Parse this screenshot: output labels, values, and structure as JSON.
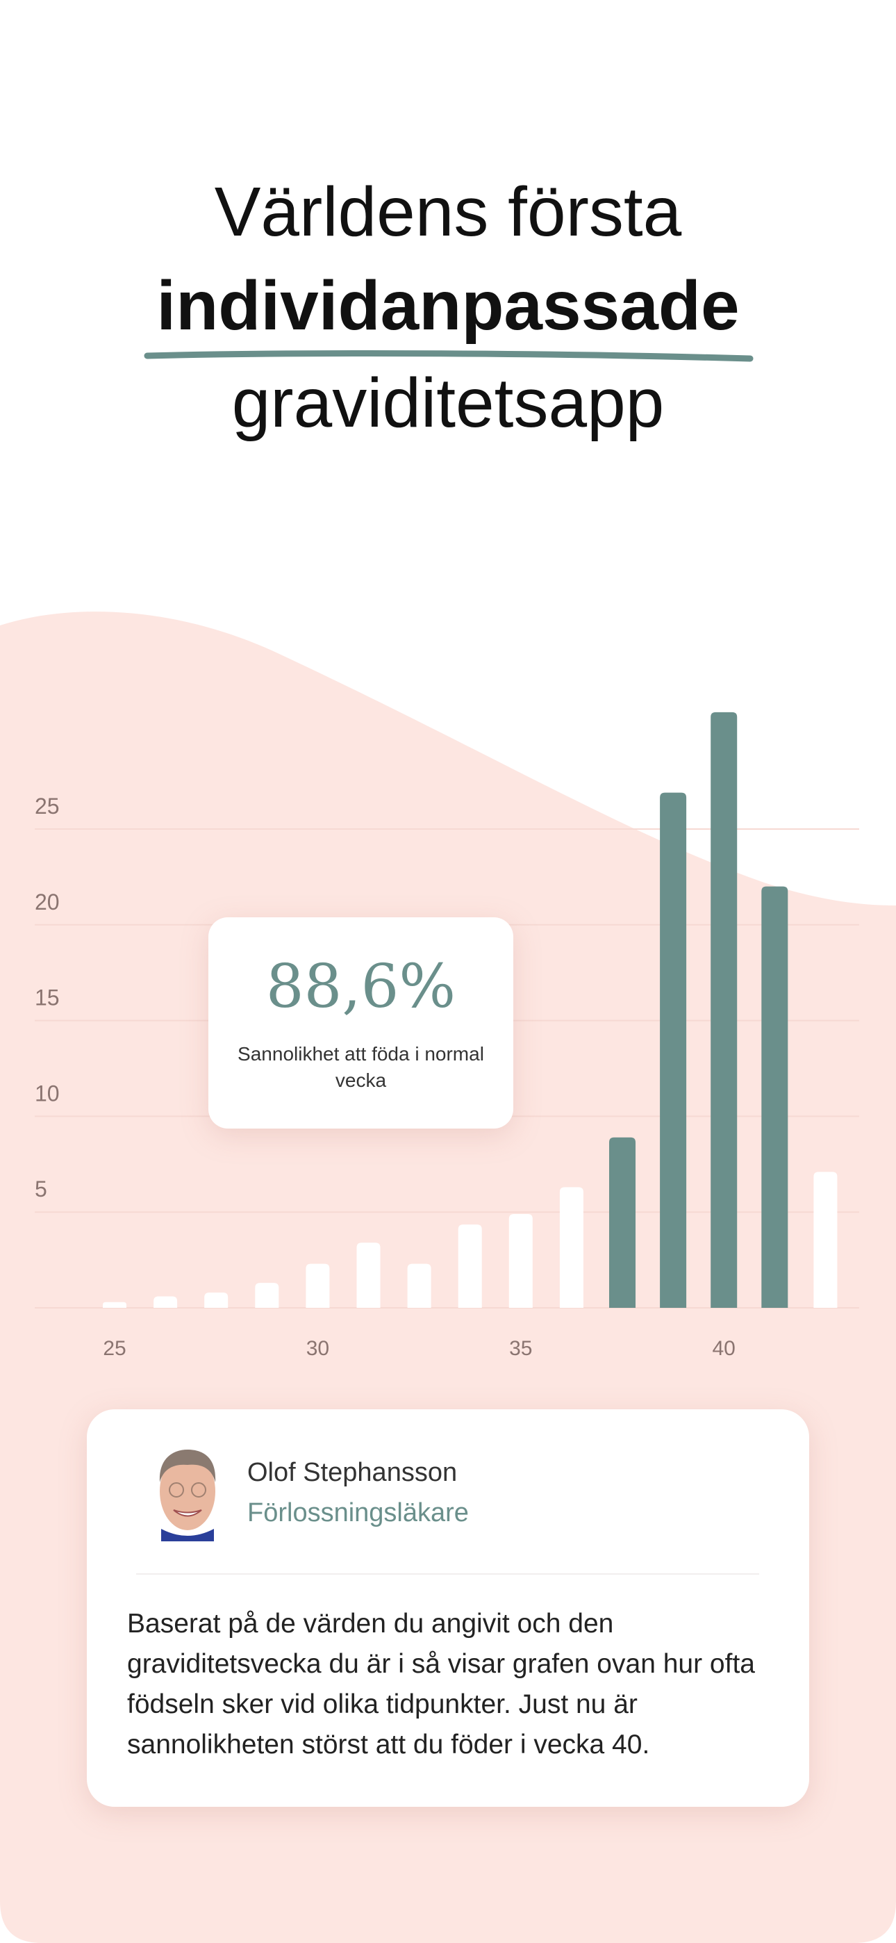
{
  "headline": {
    "line1": "Världens första",
    "line2": "individanpassade",
    "line3": "graviditetsapp"
  },
  "stat_card": {
    "value": "88,6%",
    "label": "Sannolikhet att föda i normal vecka"
  },
  "doctor_card": {
    "name": "Olof Stephansson",
    "role": "Förlossningsläkare",
    "text": "Baserat på de värden du angivit och den graviditetsvecka du är i så visar grafen ovan hur ofta födseln sker vid olika tidpunkter. Just nu är sannolikheten störst att du föder i vecka 40."
  },
  "colors": {
    "accent": "#6a8f8b",
    "background_pink": "#fde6e1",
    "bar_default": "#ffffff",
    "text": "#111111"
  },
  "chart_data": {
    "type": "bar",
    "values": [
      0.3,
      0.6,
      0.8,
      1.3,
      2.3,
      3.4,
      2.3,
      4.35,
      4.9,
      6.3,
      8.9,
      26.9,
      31.1,
      22.0,
      7.1
    ],
    "highlighted": [
      false,
      false,
      false,
      false,
      false,
      false,
      false,
      false,
      false,
      false,
      true,
      true,
      true,
      true,
      false
    ],
    "x_tick_labels": [
      "25",
      "30",
      "35",
      "40"
    ],
    "y_ticks": [
      5,
      10,
      15,
      20,
      25
    ],
    "ylim": [
      0,
      31.1
    ],
    "grid": true,
    "title": "",
    "xlabel": "",
    "ylabel": ""
  }
}
